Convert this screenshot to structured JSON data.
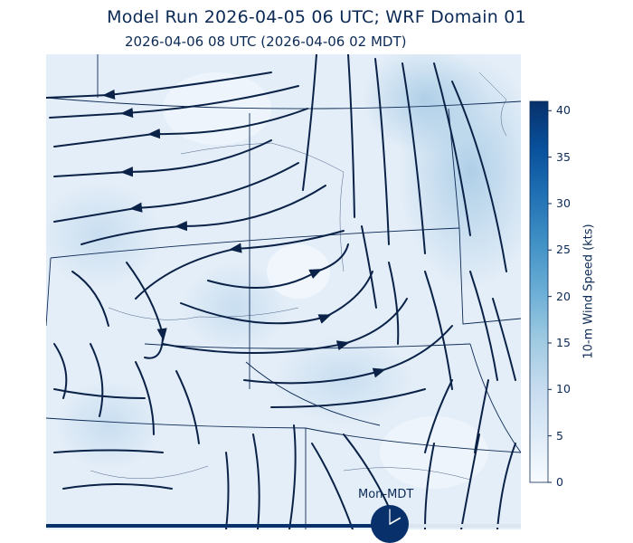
{
  "title": "Model Run 2026-04-05 06 UTC; WRF Domain 01",
  "subtitle": "2026-04-06 08 UTC  (2026-04-06 02 MDT)",
  "colorbar": {
    "label": "10-m Wind Speed (kts)",
    "ticks": [
      "0",
      "5",
      "10",
      "15",
      "20",
      "25",
      "30",
      "35",
      "40"
    ],
    "min": 0,
    "max": 41
  },
  "clock": {
    "label": "Mon-MDT",
    "hour": 2,
    "minute": 0
  },
  "timeline": {
    "progress": 0.72
  },
  "colors": {
    "streamline": "#0a2247",
    "border": "#0d2a55",
    "accent": "#08306b"
  }
}
